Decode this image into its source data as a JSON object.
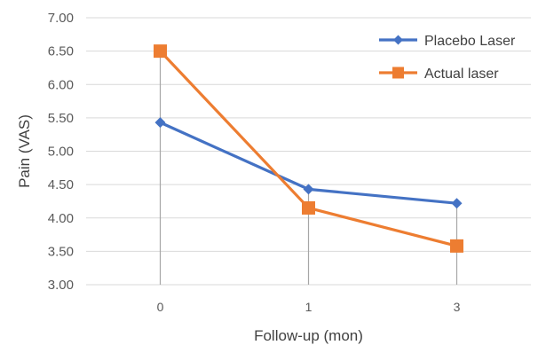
{
  "chart_data": {
    "type": "line",
    "categories": [
      "0",
      "1",
      "3"
    ],
    "series": [
      {
        "name": "Placebo Laser",
        "values": [
          5.43,
          4.43,
          4.22
        ],
        "color": "#4472C4",
        "marker": "diamond"
      },
      {
        "name": "Actual laser",
        "values": [
          6.5,
          4.15,
          3.58
        ],
        "color": "#ED7D31",
        "marker": "square"
      }
    ],
    "xlabel": "Follow-up (mon)",
    "ylabel": "Pain (VAS)",
    "ylim": [
      3.0,
      7.0
    ],
    "yticks": [
      "3.00",
      "3.50",
      "4.00",
      "4.50",
      "5.00",
      "5.50",
      "6.00",
      "6.50",
      "7.00"
    ],
    "gridlines": "horizontal",
    "drop_lines": true,
    "legend_position": "top-right"
  }
}
